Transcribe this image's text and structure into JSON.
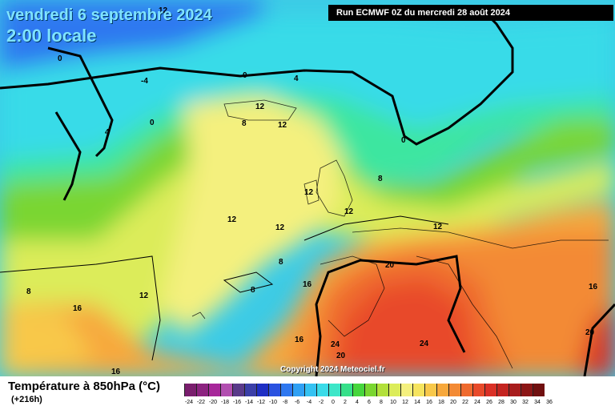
{
  "header": {
    "date": "vendredi 6 septembre 2024",
    "time": "2:00 locale",
    "run": "Run ECMWF 0Z du mercredi 28 août 2024"
  },
  "map": {
    "copyright": "Copyright 2024 Meteociel.fr",
    "isotherm_labels": [
      "12",
      "0",
      "0",
      "-4",
      "0",
      "4",
      "4",
      "0",
      "12",
      "8",
      "12",
      "8",
      "12",
      "12",
      "12",
      "12",
      "12",
      "8",
      "8",
      "8",
      "16",
      "16",
      "20",
      "16",
      "24",
      "20",
      "24",
      "20",
      "16",
      "16",
      "12"
    ]
  },
  "footer": {
    "title": "Température à 850hPa (°C)",
    "subtitle": "(+216h)"
  },
  "legend": {
    "ticks": [
      "-24",
      "-22",
      "-20",
      "-18",
      "-16",
      "-14",
      "-12",
      "-10",
      "-8",
      "-6",
      "-4",
      "-2",
      "0",
      "2",
      "4",
      "6",
      "8",
      "10",
      "12",
      "14",
      "16",
      "18",
      "20",
      "22",
      "24",
      "26",
      "28",
      "30",
      "32",
      "34",
      "36"
    ],
    "colors": [
      "#7a1e6e",
      "#8c2380",
      "#a7279a",
      "#b24fb0",
      "#5a3a8a",
      "#3b3fa8",
      "#1f2fc4",
      "#2a52e0",
      "#2f78f0",
      "#2fa0f4",
      "#34c2f2",
      "#39dbe8",
      "#3de6c8",
      "#37e08a",
      "#46d63c",
      "#7ad630",
      "#b2e03a",
      "#dcec5a",
      "#f4f07e",
      "#f6e45e",
      "#f8c84a",
      "#f7a83c",
      "#f38a34",
      "#ef6a2e",
      "#e84a2a",
      "#da3026",
      "#c42420",
      "#a81c1c",
      "#8c1616",
      "#701010"
    ],
    "colors_note": "accent colors of the temperature scale"
  }
}
